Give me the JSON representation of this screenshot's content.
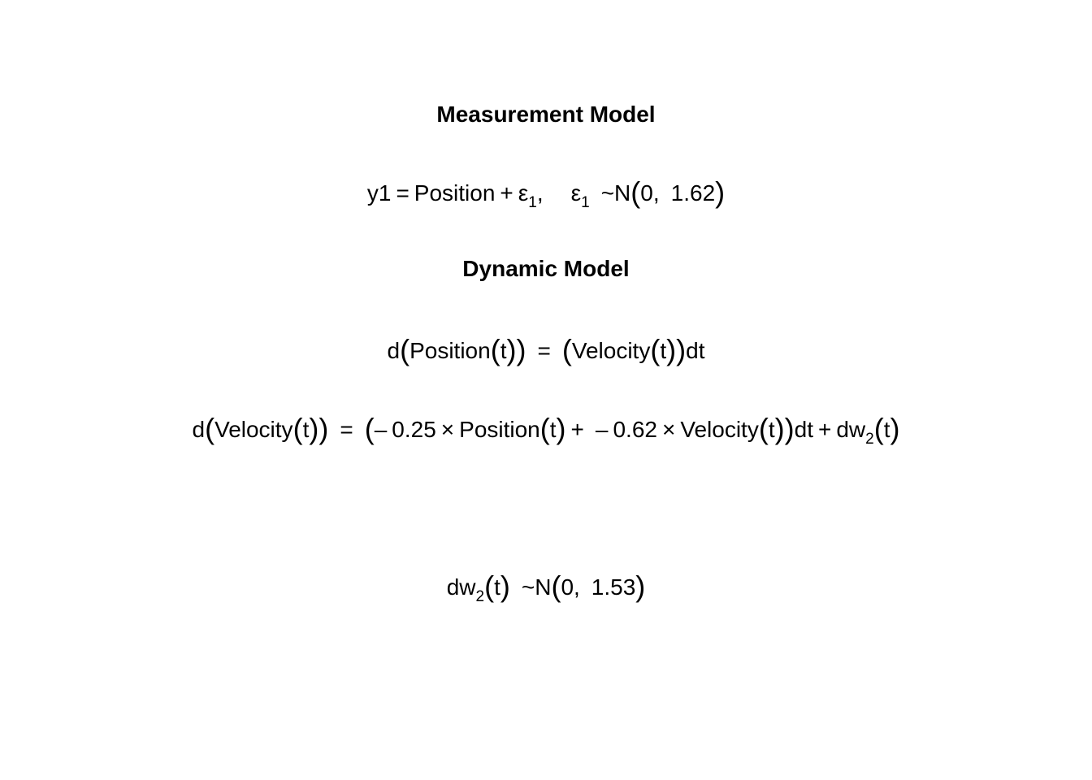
{
  "measurement_heading": "Measurement Model",
  "measurement_eq": {
    "lhs": "y1",
    "eq": "=",
    "state": "Position",
    "plus": "+",
    "eps": "ε",
    "eps_sub": "1",
    "comma": ",",
    "eps2": "ε",
    "eps2_sub": "1",
    "tilde": "~",
    "dist": "N",
    "mean": "0",
    "comma2": ",",
    "var": "1.62"
  },
  "dynamic_heading": "Dynamic Model",
  "dyn_eq1": {
    "d": "d",
    "state": "Position",
    "t": "t",
    "eq": "=",
    "rhs_state": "Velocity",
    "rhs_t": "t",
    "dt": "dt"
  },
  "dyn_eq2": {
    "d": "d",
    "state": "Velocity",
    "t": "t",
    "eq": "=",
    "minus1": "–",
    "coef1": "0.25",
    "times1": "×",
    "var1": "Position",
    "t1": "t",
    "plus1": "+",
    "minus2": "–",
    "coef2": "0.62",
    "times2": "×",
    "var2": "Velocity",
    "t2": "t",
    "dt": "dt",
    "plus2": "+",
    "dw": "dw",
    "dw_sub": "2",
    "dw_t": "t"
  },
  "noise_eq": {
    "dw": "dw",
    "dw_sub": "2",
    "t": "t",
    "tilde": "~",
    "dist": "N",
    "mean": "0",
    "comma": ",",
    "var": "1.53"
  }
}
